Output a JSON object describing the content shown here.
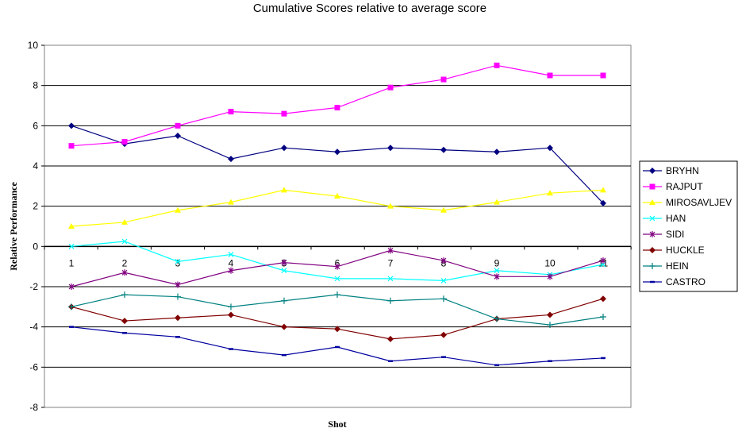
{
  "chart_data": {
    "type": "line",
    "title": "Cumulative Scores relative to average score",
    "xlabel": "Shot",
    "ylabel": "Relative Performance",
    "categories": [
      "1",
      "2",
      "3",
      "4",
      "5",
      "6",
      "7",
      "8",
      "9",
      "10",
      "11"
    ],
    "ylim": [
      -8,
      10
    ],
    "yticks": [
      "10",
      "8",
      "6",
      "4",
      "2",
      "0",
      "-2",
      "-4",
      "-6",
      "-8"
    ],
    "grid": true,
    "legend_position": "right",
    "series": [
      {
        "name": "BRYHN",
        "color": "#000080",
        "marker": "diamond",
        "values": [
          6.0,
          5.1,
          5.5,
          4.35,
          4.9,
          4.7,
          4.9,
          4.8,
          4.7,
          4.9,
          2.15
        ]
      },
      {
        "name": "RAJPUT",
        "color": "#FF00FF",
        "marker": "square",
        "values": [
          5.0,
          5.2,
          6.0,
          6.7,
          6.6,
          6.9,
          7.9,
          8.3,
          9.0,
          8.5,
          8.5
        ]
      },
      {
        "name": "MIROSAVLJEV",
        "color": "#FFFF00",
        "marker": "triangle",
        "values": [
          1.0,
          1.2,
          1.8,
          2.2,
          2.8,
          2.5,
          2.0,
          1.8,
          2.2,
          2.65,
          2.8
        ]
      },
      {
        "name": "HAN",
        "color": "#00FFFF",
        "marker": "x",
        "values": [
          0.0,
          0.25,
          -0.75,
          -0.4,
          -1.2,
          -1.6,
          -1.6,
          -1.7,
          -1.2,
          -1.4,
          -0.9
        ]
      },
      {
        "name": "SIDI",
        "color": "#800080",
        "marker": "star",
        "values": [
          -2.0,
          -1.3,
          -1.9,
          -1.2,
          -0.8,
          -1.0,
          -0.2,
          -0.7,
          -1.5,
          -1.5,
          -0.7
        ]
      },
      {
        "name": "HUCKLE",
        "color": "#800000",
        "marker": "diamond",
        "values": [
          -3.0,
          -3.7,
          -3.55,
          -3.4,
          -4.0,
          -4.1,
          -4.6,
          -4.4,
          -3.6,
          -3.4,
          -2.6
        ]
      },
      {
        "name": "HEIN",
        "color": "#008080",
        "marker": "plus",
        "values": [
          -3.0,
          -2.4,
          -2.5,
          -3.0,
          -2.7,
          -2.4,
          -2.7,
          -2.6,
          -3.6,
          -3.9,
          -3.5
        ]
      },
      {
        "name": "CASTRO",
        "color": "#0000A0",
        "marker": "dash",
        "values": [
          -4.0,
          -4.3,
          -4.5,
          -5.1,
          -5.4,
          -5.0,
          -5.7,
          -5.5,
          -5.9,
          -5.7,
          -5.55
        ]
      }
    ]
  }
}
